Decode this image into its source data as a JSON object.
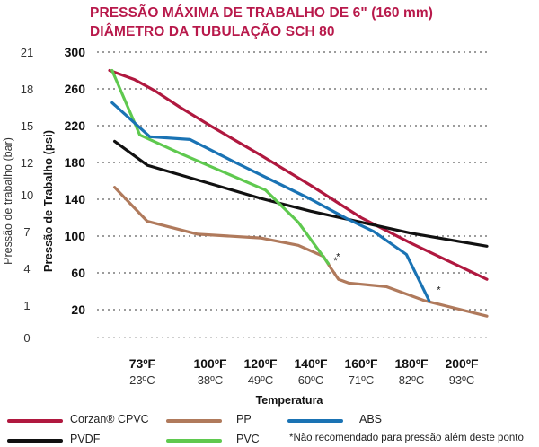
{
  "chart_data": {
    "type": "line",
    "title": [
      "PRESSÃO MÁXIMA DE TRABALHO DE 6\" (160 mm)",
      "DIÂMETRO DA TUBULAÇÃO SCH 80"
    ],
    "xlabel": "Temperatura",
    "ylabel_psi": "Pressão de Trabalho (psi)",
    "ylabel_bar": "Pressão de trabalho (bar)",
    "xlim": [
      55,
      210
    ],
    "ylim": [
      0,
      300
    ],
    "x_ticks": [
      {
        "f": 73,
        "label": "73ºF",
        "sub": "23ºC"
      },
      {
        "f": 100,
        "label": "100ºF",
        "sub": "38ºC"
      },
      {
        "f": 120,
        "label": "120ºF",
        "sub": "49ºC"
      },
      {
        "f": 140,
        "label": "140ºF",
        "sub": "60ºC"
      },
      {
        "f": 160,
        "label": "160ºF",
        "sub": "71ºC"
      },
      {
        "f": 180,
        "label": "180ºF",
        "sub": "82ºC"
      },
      {
        "f": 200,
        "label": "200ºF",
        "sub": "93ºC"
      }
    ],
    "y_ticks_psi": [
      "300",
      "260",
      "220",
      "180",
      "140",
      "100",
      "60",
      "20"
    ],
    "y_ticks_psi_values": [
      300,
      260,
      220,
      180,
      140,
      100,
      60,
      20
    ],
    "y_ticks_bar": [
      "21",
      "18",
      "15",
      "12",
      "10",
      "7",
      "4",
      "1",
      "0"
    ],
    "y_ticks_bar_values": [
      300,
      260,
      220,
      180,
      145,
      105,
      65,
      25,
      -10
    ],
    "grid": "horizontal dashed",
    "footnote": "*Não recomendado para pressão além deste ponto",
    "series": [
      {
        "name": "Corzan® CPVC",
        "color": "#b0183f",
        "x": [
          60,
          70,
          78,
          88,
          100,
          120,
          140,
          160,
          180,
          210
        ],
        "y": [
          280,
          270,
          258,
          240,
          220,
          188,
          155,
          120,
          92,
          53
        ]
      },
      {
        "name": "PVDF",
        "color": "#111111",
        "x": [
          62,
          75,
          95,
          120,
          140,
          160,
          180,
          210
        ],
        "y": [
          203,
          177,
          161,
          141,
          127,
          115,
          103,
          89
        ]
      },
      {
        "name": "PP",
        "color": "#b07a5c",
        "x": [
          62,
          75,
          95,
          120,
          135,
          145,
          148,
          151,
          155,
          170,
          185,
          210
        ],
        "y": [
          153,
          116,
          102,
          98,
          90,
          78,
          65,
          53,
          49,
          45,
          30,
          13
        ],
        "note_at_end": false,
        "asterisk": {
          "x": 148,
          "y": 68
        }
      },
      {
        "name": "PVC",
        "color": "#5fc94f",
        "x": [
          61,
          72,
          88,
          105,
          122,
          135,
          147
        ],
        "y": [
          280,
          210,
          190,
          170,
          150,
          115,
          70
        ],
        "asterisk": {
          "x": 149,
          "y": 72
        }
      },
      {
        "name": "ABS",
        "color": "#1a73b4",
        "x": [
          61,
          76,
          92,
          110,
          125,
          140,
          155,
          165,
          178,
          187
        ],
        "y": [
          245,
          208,
          205,
          180,
          160,
          140,
          118,
          105,
          80,
          30
        ],
        "asterisk": {
          "x": 189,
          "y": 36
        }
      }
    ],
    "legend_order": [
      "Corzan® CPVC",
      "PVDF",
      "PP",
      "PVC",
      "ABS"
    ],
    "legend_placement": "bottom"
  }
}
